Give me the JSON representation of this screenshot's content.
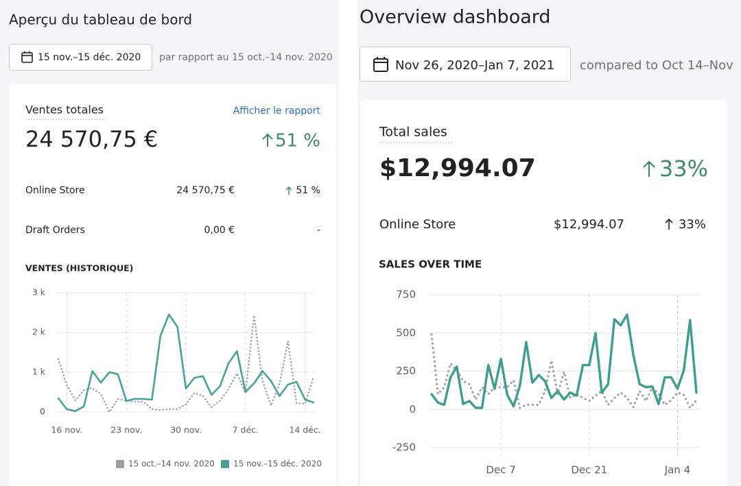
{
  "left": {
    "title": "Aperçu du tableau de bord",
    "date_range": "15 nov.–15 déc. 2020",
    "comparison": "par rapport au 15 oct.–14 nov. 2020",
    "card": {
      "title": "Ventes totales",
      "link": "Afficher le rapport",
      "total": "24 570,75 €",
      "change": "51 %",
      "rows": [
        {
          "name": "Online Store",
          "value": "24 570,75 €",
          "change": "51 %"
        },
        {
          "name": "Draft Orders",
          "value": "0,00 €",
          "change": "-"
        }
      ]
    }
  },
  "right": {
    "title": "Overview dashboard",
    "date_range": "Nov 26, 2020–Jan 7, 2021",
    "comparison": "compared to Oct 14–Nov",
    "card": {
      "title": "Total sales",
      "total": "$12,994.07",
      "change": "33%",
      "rows": [
        {
          "name": "Online Store",
          "value": "$12,994.07",
          "change": "33%"
        }
      ]
    }
  },
  "chart_data": [
    {
      "type": "line",
      "title": "VENTES (HISTORIQUE)",
      "categories": [
        null,
        "16 nov.",
        null,
        null,
        null,
        null,
        null,
        null,
        "23 nov.",
        null,
        null,
        null,
        null,
        null,
        null,
        "30 nov.",
        null,
        null,
        null,
        null,
        null,
        null,
        "7 déc.",
        null,
        null,
        null,
        null,
        null,
        null,
        "14 déc.",
        null
      ],
      "ylim": [
        0,
        3000
      ],
      "yticks": [
        0,
        {
          "value": 1000,
          "label": "1 k"
        },
        {
          "value": 2000,
          "label": "2 k"
        },
        {
          "value": 3000,
          "label": "3 k"
        }
      ],
      "grid": true,
      "legend": "bottom-right",
      "series": [
        {
          "name": "15 oct.–14 nov. 2020",
          "color": "#9c9fa6",
          "dashed": true,
          "values": [
            1330,
            670,
            290,
            550,
            600,
            450,
            0,
            330,
            280,
            260,
            260,
            70,
            50,
            70,
            70,
            190,
            480,
            400,
            120,
            280,
            570,
            970,
            480,
            2430,
            790,
            160,
            710,
            1780,
            220,
            210,
            880
          ]
        },
        {
          "name": "15 nov.–15 déc. 2020",
          "color": "#47a398",
          "dashed": false,
          "values": [
            345,
            70,
            20,
            140,
            1030,
            740,
            1000,
            950,
            280,
            330,
            330,
            310,
            1910,
            2450,
            2140,
            590,
            860,
            900,
            430,
            650,
            1220,
            1530,
            500,
            720,
            1030,
            780,
            400,
            690,
            760,
            310,
            240
          ]
        }
      ]
    },
    {
      "type": "line",
      "title": "SALES OVER TIME",
      "categories": [
        null,
        null,
        null,
        null,
        null,
        null,
        null,
        null,
        null,
        null,
        null,
        "Dec 7",
        null,
        null,
        null,
        null,
        null,
        null,
        null,
        null,
        null,
        null,
        null,
        null,
        null,
        "Dec 21",
        null,
        null,
        null,
        null,
        null,
        null,
        null,
        null,
        null,
        null,
        null,
        null,
        null,
        "Jan 4",
        null,
        null,
        null
      ],
      "ylim": [
        -250,
        750
      ],
      "yticks": [
        -250,
        0,
        250,
        500,
        750
      ],
      "grid": true,
      "series": [
        {
          "color": "#a3a5a8",
          "dashed": true,
          "values": [
            490,
            100,
            145,
            300,
            255,
            185,
            165,
            65,
            145,
            100,
            145,
            145,
            145,
            190,
            10,
            30,
            30,
            30,
            120,
            320,
            100,
            245,
            75,
            100,
            75,
            55,
            90,
            120,
            30,
            75,
            110,
            75,
            15,
            120,
            55,
            145,
            100,
            30,
            60,
            110,
            95,
            10,
            60
          ]
        },
        {
          "color": "#3d9d8f",
          "dashed": false,
          "values": [
            100,
            45,
            30,
            210,
            280,
            35,
            55,
            10,
            10,
            290,
            135,
            330,
            95,
            20,
            155,
            440,
            175,
            225,
            185,
            75,
            120,
            65,
            110,
            90,
            290,
            290,
            500,
            110,
            165,
            590,
            550,
            620,
            355,
            165,
            145,
            150,
            35,
            210,
            210,
            135,
            255,
            585,
            110
          ]
        }
      ]
    }
  ]
}
